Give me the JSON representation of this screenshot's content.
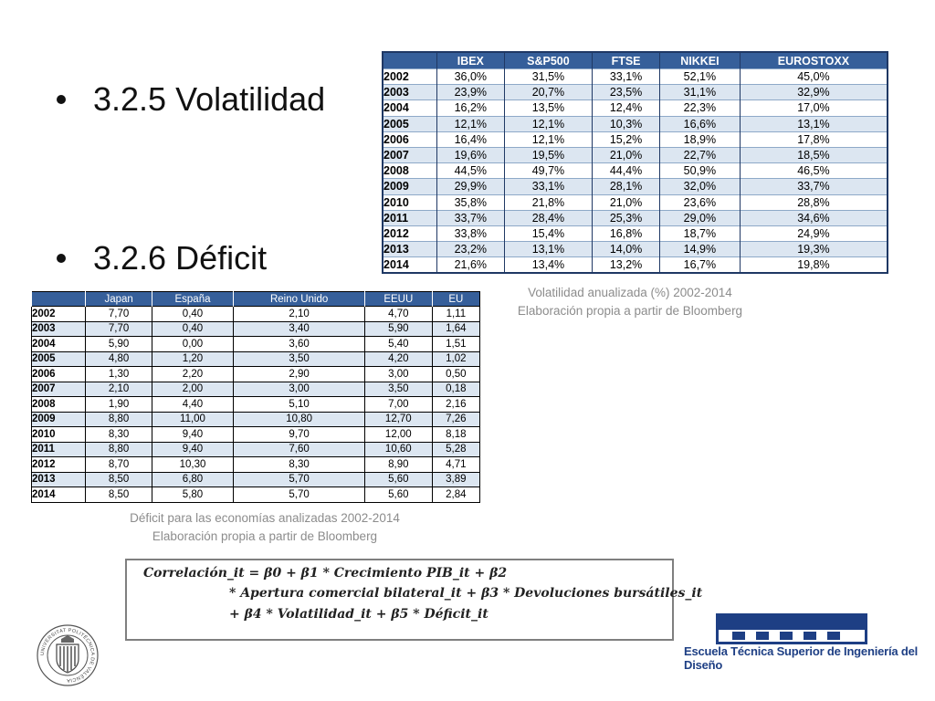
{
  "bullets": {
    "volatilidad": "3.2.5 Volatilidad",
    "deficit": "3.2.6 Déficit"
  },
  "volatility_table": {
    "headers": [
      "",
      "IBEX",
      "S&P500",
      "FTSE",
      "NIKKEI",
      "EUROSTOXX"
    ],
    "rows": [
      [
        "2002",
        "36,0%",
        "31,5%",
        "33,1%",
        "52,1%",
        "45,0%"
      ],
      [
        "2003",
        "23,9%",
        "20,7%",
        "23,5%",
        "31,1%",
        "32,9%"
      ],
      [
        "2004",
        "16,2%",
        "13,5%",
        "12,4%",
        "22,3%",
        "17,0%"
      ],
      [
        "2005",
        "12,1%",
        "12,1%",
        "10,3%",
        "16,6%",
        "13,1%"
      ],
      [
        "2006",
        "16,4%",
        "12,1%",
        "15,2%",
        "18,9%",
        "17,8%"
      ],
      [
        "2007",
        "19,6%",
        "19,5%",
        "21,0%",
        "22,7%",
        "18,5%"
      ],
      [
        "2008",
        "44,5%",
        "49,7%",
        "44,4%",
        "50,9%",
        "46,5%"
      ],
      [
        "2009",
        "29,9%",
        "33,1%",
        "28,1%",
        "32,0%",
        "33,7%"
      ],
      [
        "2010",
        "35,8%",
        "21,8%",
        "21,0%",
        "23,6%",
        "28,8%"
      ],
      [
        "2011",
        "33,7%",
        "28,4%",
        "25,3%",
        "29,0%",
        "34,6%"
      ],
      [
        "2012",
        "33,8%",
        "15,4%",
        "16,8%",
        "18,7%",
        "24,9%"
      ],
      [
        "2013",
        "23,2%",
        "13,1%",
        "14,0%",
        "14,9%",
        "19,3%"
      ],
      [
        "2014",
        "21,6%",
        "13,4%",
        "13,2%",
        "16,7%",
        "19,8%"
      ]
    ],
    "caption_line1": "Volatilidad anualizada (%) 2002-2014",
    "caption_line2": "Elaboración propia a partir de Bloomberg"
  },
  "deficit_table": {
    "headers": [
      "",
      "Japan",
      "España",
      "Reino Unido",
      "EEUU",
      "EU"
    ],
    "rows": [
      [
        "2002",
        "7,70",
        "0,40",
        "2,10",
        "4,70",
        "1,11"
      ],
      [
        "2003",
        "7,70",
        "0,40",
        "3,40",
        "5,90",
        "1,64"
      ],
      [
        "2004",
        "5,90",
        "0,00",
        "3,60",
        "5,40",
        "1,51"
      ],
      [
        "2005",
        "4,80",
        "1,20",
        "3,50",
        "4,20",
        "1,02"
      ],
      [
        "2006",
        "1,30",
        "2,20",
        "2,90",
        "3,00",
        "0,50"
      ],
      [
        "2007",
        "2,10",
        "2,00",
        "3,00",
        "3,50",
        "0,18"
      ],
      [
        "2008",
        "1,90",
        "4,40",
        "5,10",
        "7,00",
        "2,16"
      ],
      [
        "2009",
        "8,80",
        "11,00",
        "10,80",
        "12,70",
        "7,26"
      ],
      [
        "2010",
        "8,30",
        "9,40",
        "9,70",
        "12,00",
        "8,18"
      ],
      [
        "2011",
        "8,80",
        "9,40",
        "7,60",
        "10,60",
        "5,28"
      ],
      [
        "2012",
        "8,70",
        "10,30",
        "8,30",
        "8,90",
        "4,71"
      ],
      [
        "2013",
        "8,50",
        "6,80",
        "5,70",
        "5,60",
        "3,89"
      ],
      [
        "2014",
        "8,50",
        "5,80",
        "5,70",
        "5,60",
        "2,84"
      ]
    ],
    "caption_line1": "Déficit para las economías analizadas 2002-2014",
    "caption_line2": "Elaboración propia a partir de Bloomberg"
  },
  "formula": {
    "line1": "Correlación_it = β0 + β1 * Crecimiento PIB_it + β2",
    "line2": "* Apertura comercial bilateral_it + β3 * Devoluciones bursátiles_it",
    "line3": "+ β4 * Volatilidad_it + β5 * Déficit_it"
  },
  "footer": {
    "school_name": "Escuela Técnica Superior de Ingeniería del Diseño",
    "seal_text": "UNIVERSITAT POLITÈCNICA DE VALÈNCIA",
    "seal_icon": "university-seal-icon",
    "logo_icon": "etsid-building-logo-icon",
    "brand_color": "#1e3f84"
  }
}
